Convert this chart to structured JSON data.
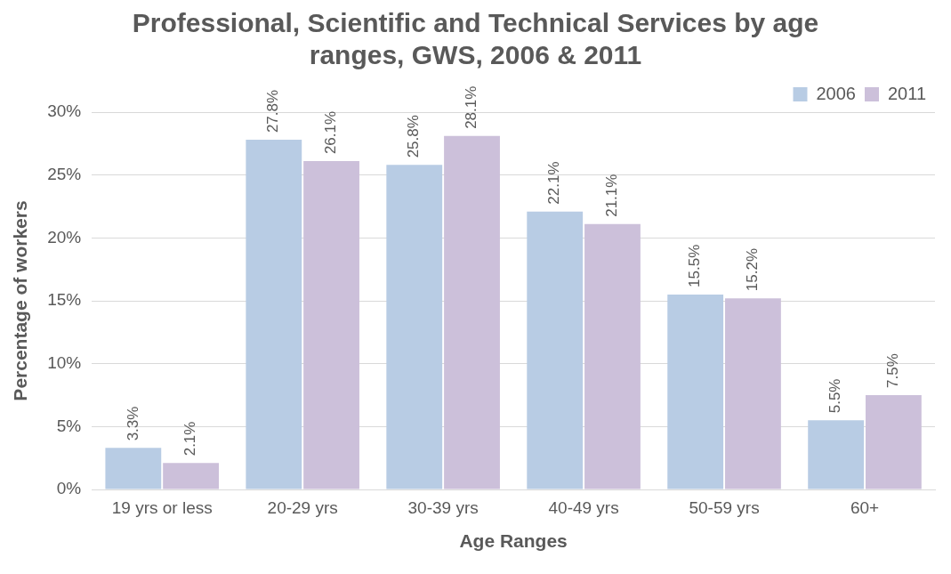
{
  "chart_data": {
    "type": "bar",
    "title": "Professional, Scientific and Technical Services by age ranges, GWS, 2006 & 2011",
    "xlabel": "Age Ranges",
    "ylabel": "Percentage of workers",
    "categories": [
      "19 yrs or less",
      "20-29 yrs",
      "30-39 yrs",
      "40-49 yrs",
      "50-59 yrs",
      "60+"
    ],
    "series": [
      {
        "name": "2006",
        "color": "#b8cce4",
        "values": [
          3.3,
          27.8,
          25.8,
          22.1,
          15.5,
          5.5
        ],
        "value_labels": [
          "3.3%",
          "27.8%",
          "25.8%",
          "22.1%",
          "15.5%",
          "5.5%"
        ]
      },
      {
        "name": "2011",
        "color": "#ccc0da",
        "values": [
          2.1,
          26.1,
          28.1,
          21.1,
          15.2,
          7.5
        ],
        "value_labels": [
          "2.1%",
          "26.1%",
          "28.1%",
          "21.1%",
          "15.2%",
          "7.5%"
        ]
      }
    ],
    "ylim": [
      0,
      30
    ],
    "yticks": [
      {
        "value": 0,
        "label": "0%"
      },
      {
        "value": 5,
        "label": "5%"
      },
      {
        "value": 10,
        "label": "10%"
      },
      {
        "value": 15,
        "label": "15%"
      },
      {
        "value": 20,
        "label": "20%"
      },
      {
        "value": 25,
        "label": "25%"
      },
      {
        "value": 30,
        "label": "30%"
      }
    ],
    "grid": "y",
    "legend": "top right"
  }
}
